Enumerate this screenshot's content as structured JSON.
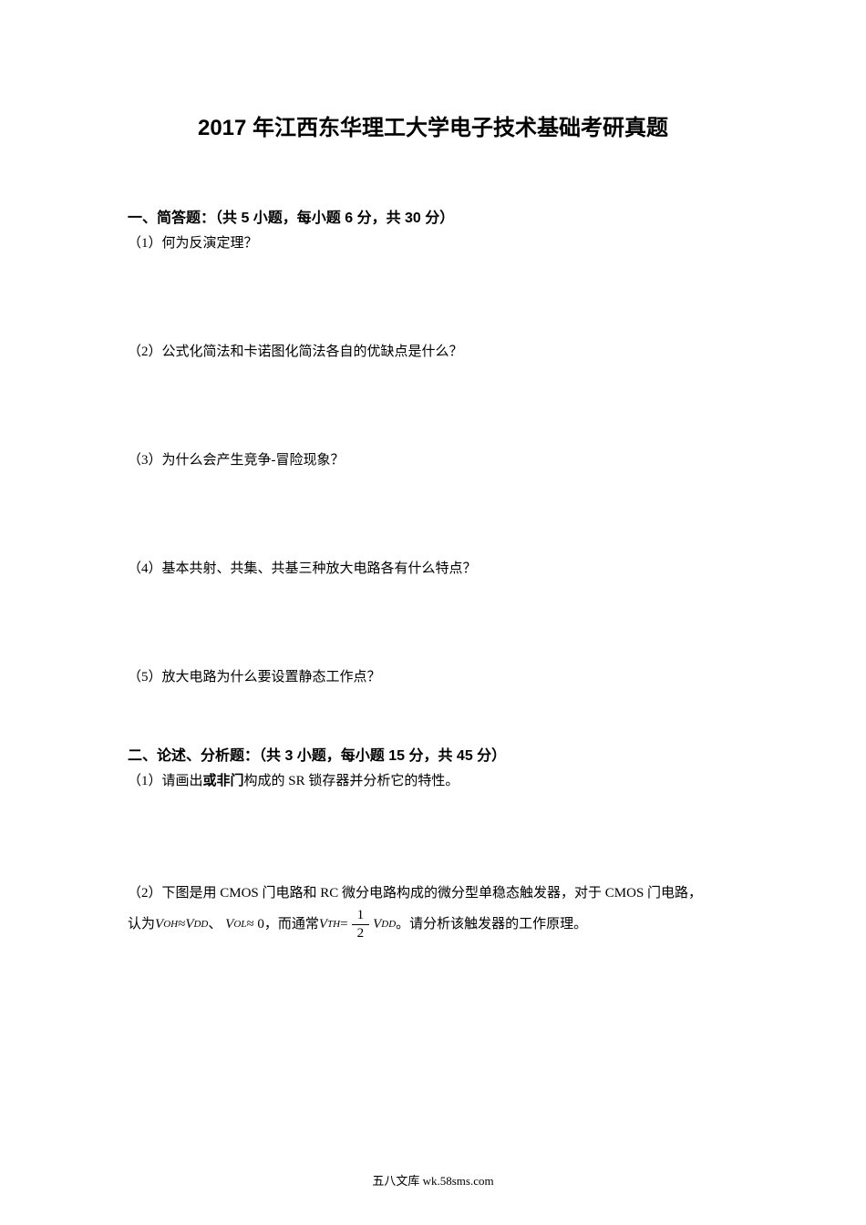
{
  "title": "2017 年江西东华理工大学电子技术基础考研真题",
  "section1": {
    "header": "一、简答题：（共 5 小题，每小题 6 分，共 30 分）",
    "q1": "（1）何为反演定理？",
    "q2": "（2）公式化简法和卡诺图化简法各自的优缺点是什么？",
    "q3": "（3）为什么会产生竞争-冒险现象？",
    "q4": "（4）基本共射、共集、共基三种放大电路各有什么特点？",
    "q5": "（5）放大电路为什么要设置静态工作点？"
  },
  "section2": {
    "header": "二、论述、分析题：（共 3 小题，每小题 15 分，共 45 分）",
    "q1_pre": "（1）请画出",
    "q1_bold": "或非门",
    "q1_post": "构成的 SR 锁存器并分析它的特性。",
    "q2_line1": "（2）下图是用 CMOS 门电路和 RC 微分电路构成的微分型单稳态触发器，对于 CMOS 门电路，",
    "q2_pre": "认为",
    "q2_mid1": "、",
    "q2_mid2": "，而通常",
    "q2_post": "。请分析该触发器的工作原理。",
    "formula": {
      "voh_var": "V",
      "voh_sub": "OH",
      "approx1": " ≈ ",
      "vdd_var": "V",
      "vdd_sub": "DD",
      "vol_var": "V",
      "vol_sub": "OL",
      "approx2": " ≈ 0",
      "vth_var": "V",
      "vth_sub": "TH",
      "equals": " = ",
      "frac_num": "1",
      "frac_den": "2",
      "vdd2_var": "V",
      "vdd2_sub": "DD"
    }
  },
  "footer": "五八文库 wk.58sms.com",
  "colors": {
    "background": "#ffffff",
    "text": "#000000"
  },
  "fonts": {
    "title_size": 24,
    "body_size": 15,
    "header_size": 16,
    "footer_size": 13
  }
}
